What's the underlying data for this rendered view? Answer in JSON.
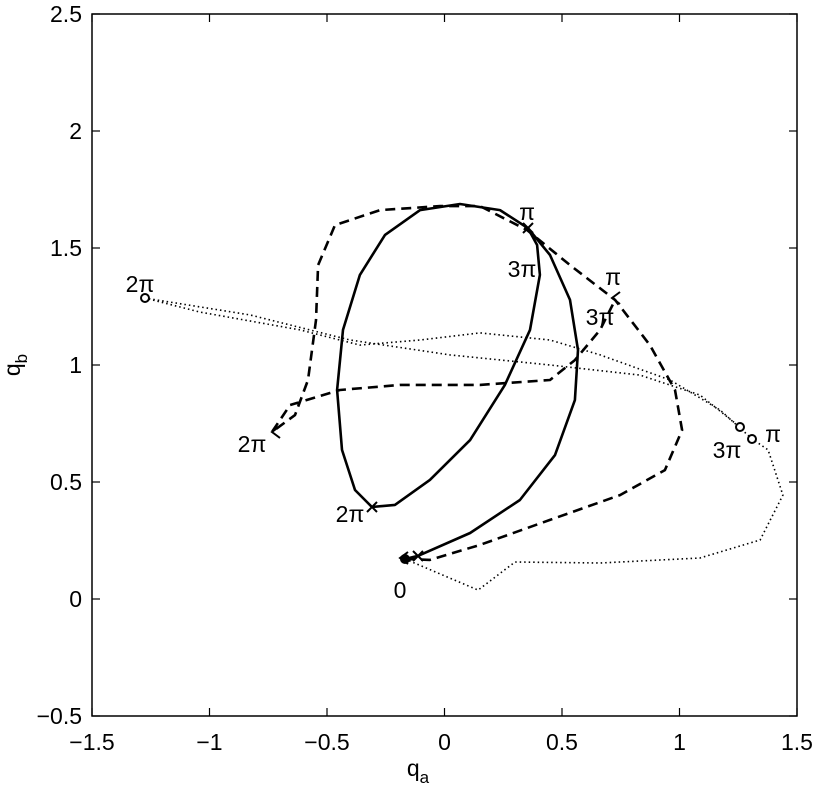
{
  "chart_data": {
    "type": "line",
    "x_label": {
      "main": "q",
      "sub": "a"
    },
    "y_label": {
      "main": "q",
      "sub": "b"
    },
    "xlim": [
      -1.5,
      1.5
    ],
    "ylim": [
      -0.5,
      2.5
    ],
    "xticks": [
      {
        "value": -1.5,
        "label": "−1.5"
      },
      {
        "value": -1,
        "label": "−1"
      },
      {
        "value": -0.5,
        "label": "−0.5"
      },
      0,
      0.5,
      1,
      1.5
    ],
    "yticks": [
      {
        "value": -0.5,
        "label": "−0.5"
      },
      0,
      0.5,
      1,
      1.5,
      2,
      2.5
    ],
    "series": [
      {
        "color": "#000000",
        "dash": "solid",
        "x": [
          -0.168,
          -0.113,
          0.109,
          0.321,
          0.47,
          0.555,
          0.568,
          0.534,
          0.449,
          0.355,
          0.236,
          0.066,
          -0.104,
          -0.253,
          -0.36,
          -0.432,
          -0.457,
          -0.436,
          -0.381,
          -0.309,
          -0.211,
          -0.062,
          0.109,
          0.257,
          0.364,
          0.406,
          0.394,
          0.355
        ],
        "y": [
          0.171,
          0.184,
          0.282,
          0.423,
          0.615,
          0.85,
          1.064,
          1.278,
          1.47,
          1.585,
          1.662,
          1.688,
          1.662,
          1.556,
          1.385,
          1.15,
          0.893,
          0.637,
          0.466,
          0.393,
          0.402,
          0.509,
          0.679,
          0.915,
          1.15,
          1.385,
          1.513,
          1.585
        ]
      },
      {
        "color": "#000000",
        "dash": "dashed",
        "x": [
          -0.168,
          -0.062,
          0.151,
          0.449,
          0.747,
          0.938,
          1.011,
          0.981,
          0.874,
          0.726,
          0.534,
          0.351,
          0.151,
          -0.019,
          -0.274,
          -0.466,
          -0.538,
          -0.547,
          -0.581,
          -0.636,
          -0.734,
          -0.657,
          -0.445,
          -0.189,
          0.151,
          0.449,
          0.555,
          0.662,
          0.726
        ],
        "y": [
          0.171,
          0.167,
          0.231,
          0.338,
          0.444,
          0.551,
          0.722,
          0.893,
          1.085,
          1.278,
          1.427,
          1.577,
          1.679,
          1.679,
          1.662,
          1.598,
          1.427,
          1.192,
          0.936,
          0.786,
          0.714,
          0.829,
          0.893,
          0.915,
          0.915,
          0.936,
          1.021,
          1.15,
          1.278
        ]
      },
      {
        "color": "#000000",
        "dash": "dotted",
        "x": [
          -0.168,
          0.143,
          0.3,
          0.662,
          1.087,
          1.343,
          1.44,
          1.377,
          1.309,
          1.172,
          0.96,
          0.662,
          0.449,
          0.151,
          -0.104,
          -0.36,
          -0.615,
          -1.04,
          -1.274,
          -0.828,
          -0.402,
          0.023,
          0.449,
          0.832,
          1.087,
          1.257
        ],
        "y": [
          0.171,
          0.038,
          0.158,
          0.154,
          0.175,
          0.252,
          0.444,
          0.637,
          0.684,
          0.808,
          0.936,
          1.043,
          1.107,
          1.137,
          1.107,
          1.085,
          1.15,
          1.226,
          1.286,
          1.214,
          1.107,
          1.043,
          1.0,
          0.957,
          0.872,
          0.735
        ]
      }
    ],
    "annotations": [
      "π",
      "3π",
      "π",
      "3π",
      "2π",
      "2π",
      "2π",
      "0",
      "3π",
      "π"
    ]
  }
}
